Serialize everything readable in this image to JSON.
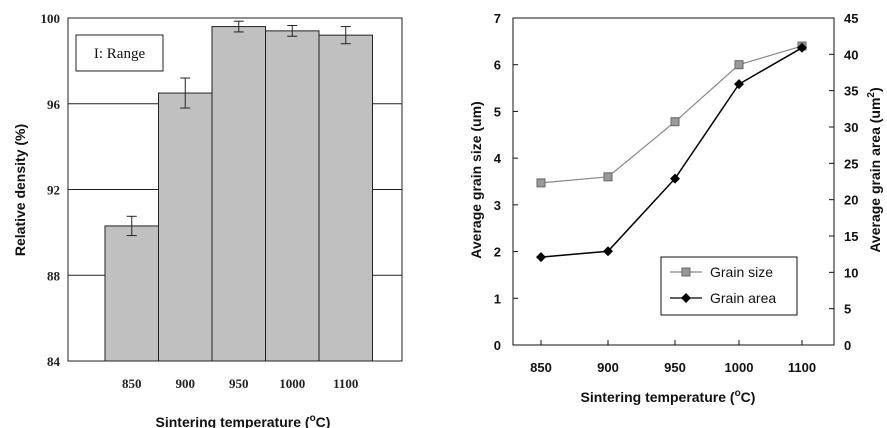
{
  "chart_data": [
    {
      "type": "bar",
      "categories": [
        "850",
        "900",
        "950",
        "1000",
        "1100"
      ],
      "values": [
        90.3,
        96.5,
        99.6,
        99.4,
        99.2
      ],
      "error": [
        0.45,
        0.7,
        0.25,
        0.25,
        0.4
      ],
      "ylim": [
        84,
        100
      ],
      "yticks": [
        "84",
        "88",
        "92",
        "96",
        "100"
      ],
      "ylabel": "Relative density (%)",
      "xlabel": "Sintering temperature (°C)",
      "xlabel_parts": [
        "Sintering temperature (",
        "o",
        "C)"
      ],
      "legend_text": "I: Range",
      "grid": true,
      "colors": {
        "bar": "#c0c0c0",
        "bar_stroke": "#222222"
      }
    },
    {
      "type": "line",
      "categories": [
        "850",
        "900",
        "950",
        "1000",
        "1100"
      ],
      "series": [
        {
          "name": "Grain size",
          "axis": "left",
          "values": [
            3.47,
            3.6,
            4.78,
            6.0,
            6.4
          ],
          "color": "#888888",
          "marker": "square"
        },
        {
          "name": "Grain area",
          "axis": "right",
          "values": [
            12.1,
            12.9,
            22.9,
            35.9,
            40.9
          ],
          "color": "#000000",
          "marker": "diamond"
        }
      ],
      "ylim": [
        0,
        7
      ],
      "y2lim": [
        0,
        45
      ],
      "yticks": [
        "0",
        "1",
        "2",
        "3",
        "4",
        "5",
        "6",
        "7"
      ],
      "y2ticks": [
        "0",
        "5",
        "10",
        "15",
        "20",
        "25",
        "30",
        "35",
        "40",
        "45"
      ],
      "ylabel": "Average grain size (um)",
      "y2label": "Average grain area (um²)",
      "y2label_parts": [
        "Average grain area (um",
        "2",
        ")"
      ],
      "xlabel": "Sintering temperature (°C)",
      "xlabel_parts": [
        "Sintering temperature (",
        "o",
        "C)"
      ],
      "legend_position": "bottom-right",
      "grid": false
    }
  ]
}
